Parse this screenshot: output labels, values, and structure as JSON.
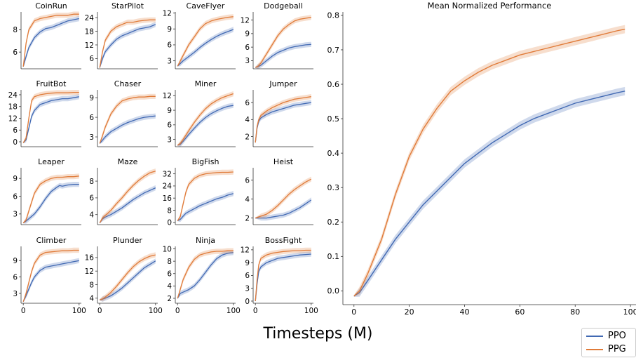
{
  "colors": {
    "ppo": "#4169b3",
    "ppg": "#e07b39"
  },
  "xlabel": "Timesteps (M)",
  "legend": {
    "ppo": "PPO",
    "ppg": "PPG"
  },
  "chart_data": [
    {
      "type": "line",
      "title": "CoinRun",
      "ylim": [
        4.5,
        9.6
      ],
      "yticks": [
        6,
        8
      ],
      "x": [
        0,
        5,
        10,
        20,
        30,
        40,
        50,
        60,
        70,
        80,
        90,
        100
      ],
      "series": [
        {
          "name": "PPO",
          "values": [
            4.7,
            5.6,
            6.4,
            7.3,
            7.8,
            8.1,
            8.2,
            8.4,
            8.6,
            8.8,
            8.9,
            9.0
          ]
        },
        {
          "name": "PPG",
          "values": [
            4.7,
            6.8,
            8.0,
            8.8,
            9.0,
            9.1,
            9.2,
            9.3,
            9.3,
            9.3,
            9.4,
            9.4
          ]
        }
      ]
    },
    {
      "type": "line",
      "title": "StarPilot",
      "ylim": [
        1.5,
        26.5
      ],
      "yticks": [
        6,
        12,
        18,
        24
      ],
      "x": [
        0,
        5,
        10,
        20,
        30,
        40,
        50,
        60,
        70,
        80,
        90,
        100
      ],
      "series": [
        {
          "name": "PPO",
          "values": [
            2,
            6,
            9,
            12,
            14.5,
            16,
            17,
            18,
            19,
            19.5,
            20,
            21
          ]
        },
        {
          "name": "PPG",
          "values": [
            2,
            9,
            14,
            18,
            20,
            21,
            22,
            22,
            22.5,
            22.8,
            23,
            23
          ]
        }
      ]
    },
    {
      "type": "line",
      "title": "CaveFlyer",
      "ylim": [
        1.5,
        12.2
      ],
      "yticks": [
        3,
        6,
        9,
        12
      ],
      "x": [
        0,
        5,
        10,
        20,
        30,
        40,
        50,
        60,
        70,
        80,
        90,
        100
      ],
      "series": [
        {
          "name": "PPO",
          "values": [
            2,
            2.5,
            3,
            3.8,
            4.6,
            5.5,
            6.3,
            7,
            7.6,
            8.1,
            8.5,
            8.9
          ]
        },
        {
          "name": "PPG",
          "values": [
            2,
            3,
            4,
            6,
            7.5,
            9,
            10,
            10.5,
            10.8,
            11,
            11.2,
            11.3
          ]
        }
      ]
    },
    {
      "type": "line",
      "title": "Dodgeball",
      "ylim": [
        1.2,
        13.8
      ],
      "yticks": [
        3,
        6,
        9,
        12
      ],
      "x": [
        0,
        5,
        10,
        20,
        30,
        40,
        50,
        60,
        70,
        80,
        90,
        100
      ],
      "series": [
        {
          "name": "PPO",
          "values": [
            1.5,
            1.7,
            2,
            3,
            4,
            4.8,
            5.3,
            5.8,
            6.1,
            6.3,
            6.5,
            6.6
          ]
        },
        {
          "name": "PPG",
          "values": [
            1.5,
            1.8,
            2.5,
            4.5,
            6.5,
            8.5,
            10,
            11,
            11.8,
            12.2,
            12.4,
            12.6
          ]
        }
      ]
    },
    {
      "type": "line",
      "title": "FruitBot",
      "ylim": [
        -2.5,
        26.5
      ],
      "yticks": [
        0,
        6,
        12,
        18,
        24
      ],
      "x": [
        0,
        5,
        10,
        15,
        20,
        30,
        40,
        50,
        60,
        70,
        80,
        90,
        100
      ],
      "series": [
        {
          "name": "PPO",
          "values": [
            -0.5,
            1,
            7,
            13,
            16,
            19,
            20,
            21,
            21.5,
            22,
            22,
            22.5,
            23
          ]
        },
        {
          "name": "PPG",
          "values": [
            -0.5,
            2,
            12,
            21,
            23,
            24,
            24.5,
            24.8,
            25,
            25,
            25,
            25.2,
            25.2
          ]
        }
      ]
    },
    {
      "type": "line",
      "title": "Chaser",
      "ylim": [
        1.5,
        10.2
      ],
      "yticks": [
        3,
        6,
        9
      ],
      "x": [
        0,
        5,
        10,
        20,
        30,
        40,
        50,
        60,
        70,
        80,
        90,
        100
      ],
      "series": [
        {
          "name": "PPO",
          "values": [
            2,
            2.5,
            3,
            3.8,
            4.3,
            4.8,
            5.2,
            5.5,
            5.8,
            6,
            6.1,
            6.2
          ]
        },
        {
          "name": "PPG",
          "values": [
            2,
            3.2,
            4.5,
            6.5,
            7.7,
            8.5,
            8.8,
            9,
            9.1,
            9.1,
            9.2,
            9.2
          ]
        }
      ]
    },
    {
      "type": "line",
      "title": "Miner",
      "ylim": [
        1.5,
        13.2
      ],
      "yticks": [
        3,
        6,
        9,
        12
      ],
      "x": [
        0,
        5,
        10,
        20,
        30,
        40,
        50,
        60,
        70,
        80,
        90,
        100
      ],
      "series": [
        {
          "name": "PPO",
          "values": [
            1.8,
            2,
            2.6,
            4,
            5.3,
            6.5,
            7.5,
            8.3,
            8.9,
            9.4,
            9.8,
            10
          ]
        },
        {
          "name": "PPG",
          "values": [
            1.8,
            2.2,
            3,
            4.8,
            6.5,
            8,
            9.3,
            10.3,
            11,
            11.6,
            12,
            12.4
          ]
        }
      ]
    },
    {
      "type": "line",
      "title": "Jumper",
      "ylim": [
        0.8,
        7.5
      ],
      "yticks": [
        2,
        4,
        6
      ],
      "x": [
        0,
        3,
        6,
        10,
        20,
        30,
        40,
        50,
        60,
        70,
        80,
        90,
        100
      ],
      "series": [
        {
          "name": "PPO",
          "values": [
            1.3,
            3,
            3.8,
            4.2,
            4.6,
            4.9,
            5.1,
            5.3,
            5.5,
            5.7,
            5.8,
            5.9,
            6
          ]
        },
        {
          "name": "PPG",
          "values": [
            1.3,
            3.2,
            4,
            4.5,
            5,
            5.4,
            5.7,
            6,
            6.2,
            6.4,
            6.5,
            6.6,
            6.7
          ]
        }
      ]
    },
    {
      "type": "line",
      "title": "Leaper",
      "ylim": [
        1.2,
        10.8
      ],
      "yticks": [
        3,
        6,
        9
      ],
      "x": [
        0,
        5,
        10,
        20,
        30,
        40,
        50,
        60,
        65,
        70,
        80,
        90,
        100
      ],
      "series": [
        {
          "name": "PPO",
          "values": [
            1.5,
            1.8,
            2.2,
            3,
            4.2,
            5.6,
            6.8,
            7.5,
            7.8,
            7.7,
            7.9,
            8,
            8
          ]
        },
        {
          "name": "PPG",
          "values": [
            1.5,
            2,
            3.5,
            6.5,
            8,
            8.6,
            9,
            9.2,
            9.2,
            9.2,
            9.3,
            9.3,
            9.4
          ]
        }
      ]
    },
    {
      "type": "line",
      "title": "Maze",
      "ylim": [
        2.8,
        9.6
      ],
      "yticks": [
        4,
        6,
        8
      ],
      "x": [
        0,
        5,
        10,
        20,
        30,
        40,
        50,
        60,
        70,
        80,
        90,
        100
      ],
      "series": [
        {
          "name": "PPO",
          "values": [
            3,
            3.5,
            3.7,
            4,
            4.4,
            4.8,
            5.3,
            5.8,
            6.2,
            6.6,
            6.9,
            7.2
          ]
        },
        {
          "name": "PPG",
          "values": [
            3,
            3.6,
            3.9,
            4.5,
            5.3,
            6,
            6.8,
            7.5,
            8.1,
            8.6,
            9,
            9.2
          ]
        }
      ]
    },
    {
      "type": "line",
      "title": "BigFish",
      "ylim": [
        -1.5,
        36
      ],
      "yticks": [
        0,
        8,
        16,
        24,
        32
      ],
      "x": [
        0,
        5,
        10,
        15,
        20,
        30,
        40,
        50,
        60,
        70,
        80,
        90,
        100
      ],
      "series": [
        {
          "name": "PPO",
          "values": [
            1,
            2,
            4,
            6,
            7,
            9,
            11,
            12.5,
            14,
            15.5,
            16.5,
            18,
            19
          ]
        },
        {
          "name": "PPG",
          "values": [
            1,
            4,
            12,
            20,
            25,
            29,
            31,
            32,
            32.5,
            32.8,
            33,
            33,
            33.2
          ]
        }
      ]
    },
    {
      "type": "line",
      "title": "Heist",
      "ylim": [
        1.3,
        7.3
      ],
      "yticks": [
        2,
        4,
        6
      ],
      "x": [
        0,
        10,
        20,
        30,
        40,
        50,
        60,
        70,
        80,
        90,
        100
      ],
      "series": [
        {
          "name": "PPO",
          "values": [
            2,
            2,
            2,
            2.1,
            2.2,
            2.3,
            2.5,
            2.8,
            3.1,
            3.5,
            3.9
          ]
        },
        {
          "name": "PPG",
          "values": [
            2,
            2.2,
            2.4,
            2.8,
            3.3,
            3.9,
            4.5,
            5,
            5.4,
            5.8,
            6.1
          ]
        }
      ]
    },
    {
      "type": "line",
      "title": "Climber",
      "ylim": [
        1.2,
        11.6
      ],
      "yticks": [
        3,
        6,
        9
      ],
      "x": [
        0,
        5,
        10,
        15,
        20,
        30,
        40,
        50,
        60,
        70,
        80,
        90,
        100
      ],
      "series": [
        {
          "name": "PPO",
          "values": [
            1.5,
            2.6,
            3.8,
            5,
            6,
            7.2,
            7.8,
            8,
            8.2,
            8.4,
            8.6,
            8.8,
            9
          ]
        },
        {
          "name": "PPG",
          "values": [
            1.5,
            3,
            5,
            7,
            8.5,
            10,
            10.5,
            10.6,
            10.7,
            10.8,
            10.8,
            10.9,
            10.9
          ]
        }
      ]
    },
    {
      "type": "line",
      "title": "Plunder",
      "ylim": [
        2.5,
        19.3
      ],
      "yticks": [
        4,
        8,
        12,
        16
      ],
      "x": [
        0,
        5,
        10,
        20,
        30,
        40,
        50,
        60,
        70,
        80,
        90,
        100
      ],
      "series": [
        {
          "name": "PPO",
          "values": [
            3.5,
            3.7,
            4,
            4.7,
            5.8,
            7,
            8.5,
            10,
            11.5,
            13,
            14,
            15
          ]
        },
        {
          "name": "PPG",
          "values": [
            3.5,
            3.8,
            4.3,
            5.7,
            7.5,
            9.5,
            11.5,
            13.3,
            14.7,
            15.7,
            16.4,
            16.8
          ]
        }
      ]
    },
    {
      "type": "line",
      "title": "Ninja",
      "ylim": [
        1.2,
        10.4
      ],
      "yticks": [
        2,
        4,
        6,
        8,
        10
      ],
      "x": [
        0,
        5,
        10,
        20,
        30,
        40,
        50,
        60,
        70,
        80,
        90,
        100
      ],
      "series": [
        {
          "name": "PPO",
          "values": [
            2,
            2.8,
            3,
            3.4,
            4,
            5,
            6.2,
            7.4,
            8.4,
            9,
            9.3,
            9.4
          ]
        },
        {
          "name": "PPG",
          "values": [
            2,
            3.5,
            5,
            7,
            8.3,
            9,
            9.3,
            9.5,
            9.6,
            9.6,
            9.7,
            9.7
          ]
        }
      ]
    },
    {
      "type": "line",
      "title": "BossFight",
      "ylim": [
        -0.5,
        12.8
      ],
      "yticks": [
        0,
        3,
        6,
        9,
        12
      ],
      "x": [
        0,
        3,
        6,
        10,
        20,
        30,
        40,
        50,
        60,
        70,
        80,
        90,
        100
      ],
      "series": [
        {
          "name": "PPO",
          "values": [
            0,
            4,
            7,
            8,
            9,
            9.5,
            10,
            10.2,
            10.4,
            10.6,
            10.8,
            10.9,
            11
          ]
        },
        {
          "name": "PPG",
          "values": [
            0,
            5,
            8.5,
            10,
            10.8,
            11.2,
            11.4,
            11.6,
            11.7,
            11.8,
            11.8,
            11.9,
            11.9
          ]
        }
      ]
    },
    {
      "type": "line",
      "title": "Mean Normalized Performance",
      "ylim": [
        -0.04,
        0.81
      ],
      "yticks": [
        0.0,
        0.1,
        0.2,
        0.3,
        0.4,
        0.5,
        0.6,
        0.7,
        0.8
      ],
      "xlim": [
        -4,
        102
      ],
      "xticks": [
        0,
        20,
        40,
        60,
        80,
        100
      ],
      "x": [
        0,
        2,
        5,
        10,
        15,
        20,
        25,
        30,
        35,
        40,
        45,
        50,
        55,
        60,
        65,
        70,
        75,
        80,
        85,
        90,
        95,
        98
      ],
      "series": [
        {
          "name": "PPO",
          "values": [
            -0.015,
            -0.005,
            0.03,
            0.09,
            0.15,
            0.2,
            0.25,
            0.29,
            0.33,
            0.37,
            0.4,
            0.43,
            0.455,
            0.48,
            0.5,
            0.515,
            0.53,
            0.545,
            0.555,
            0.565,
            0.575,
            0.58
          ]
        },
        {
          "name": "PPG",
          "values": [
            -0.015,
            0,
            0.05,
            0.15,
            0.28,
            0.39,
            0.47,
            0.53,
            0.58,
            0.61,
            0.635,
            0.655,
            0.67,
            0.685,
            0.695,
            0.705,
            0.715,
            0.725,
            0.735,
            0.745,
            0.755,
            0.76
          ]
        }
      ]
    }
  ]
}
